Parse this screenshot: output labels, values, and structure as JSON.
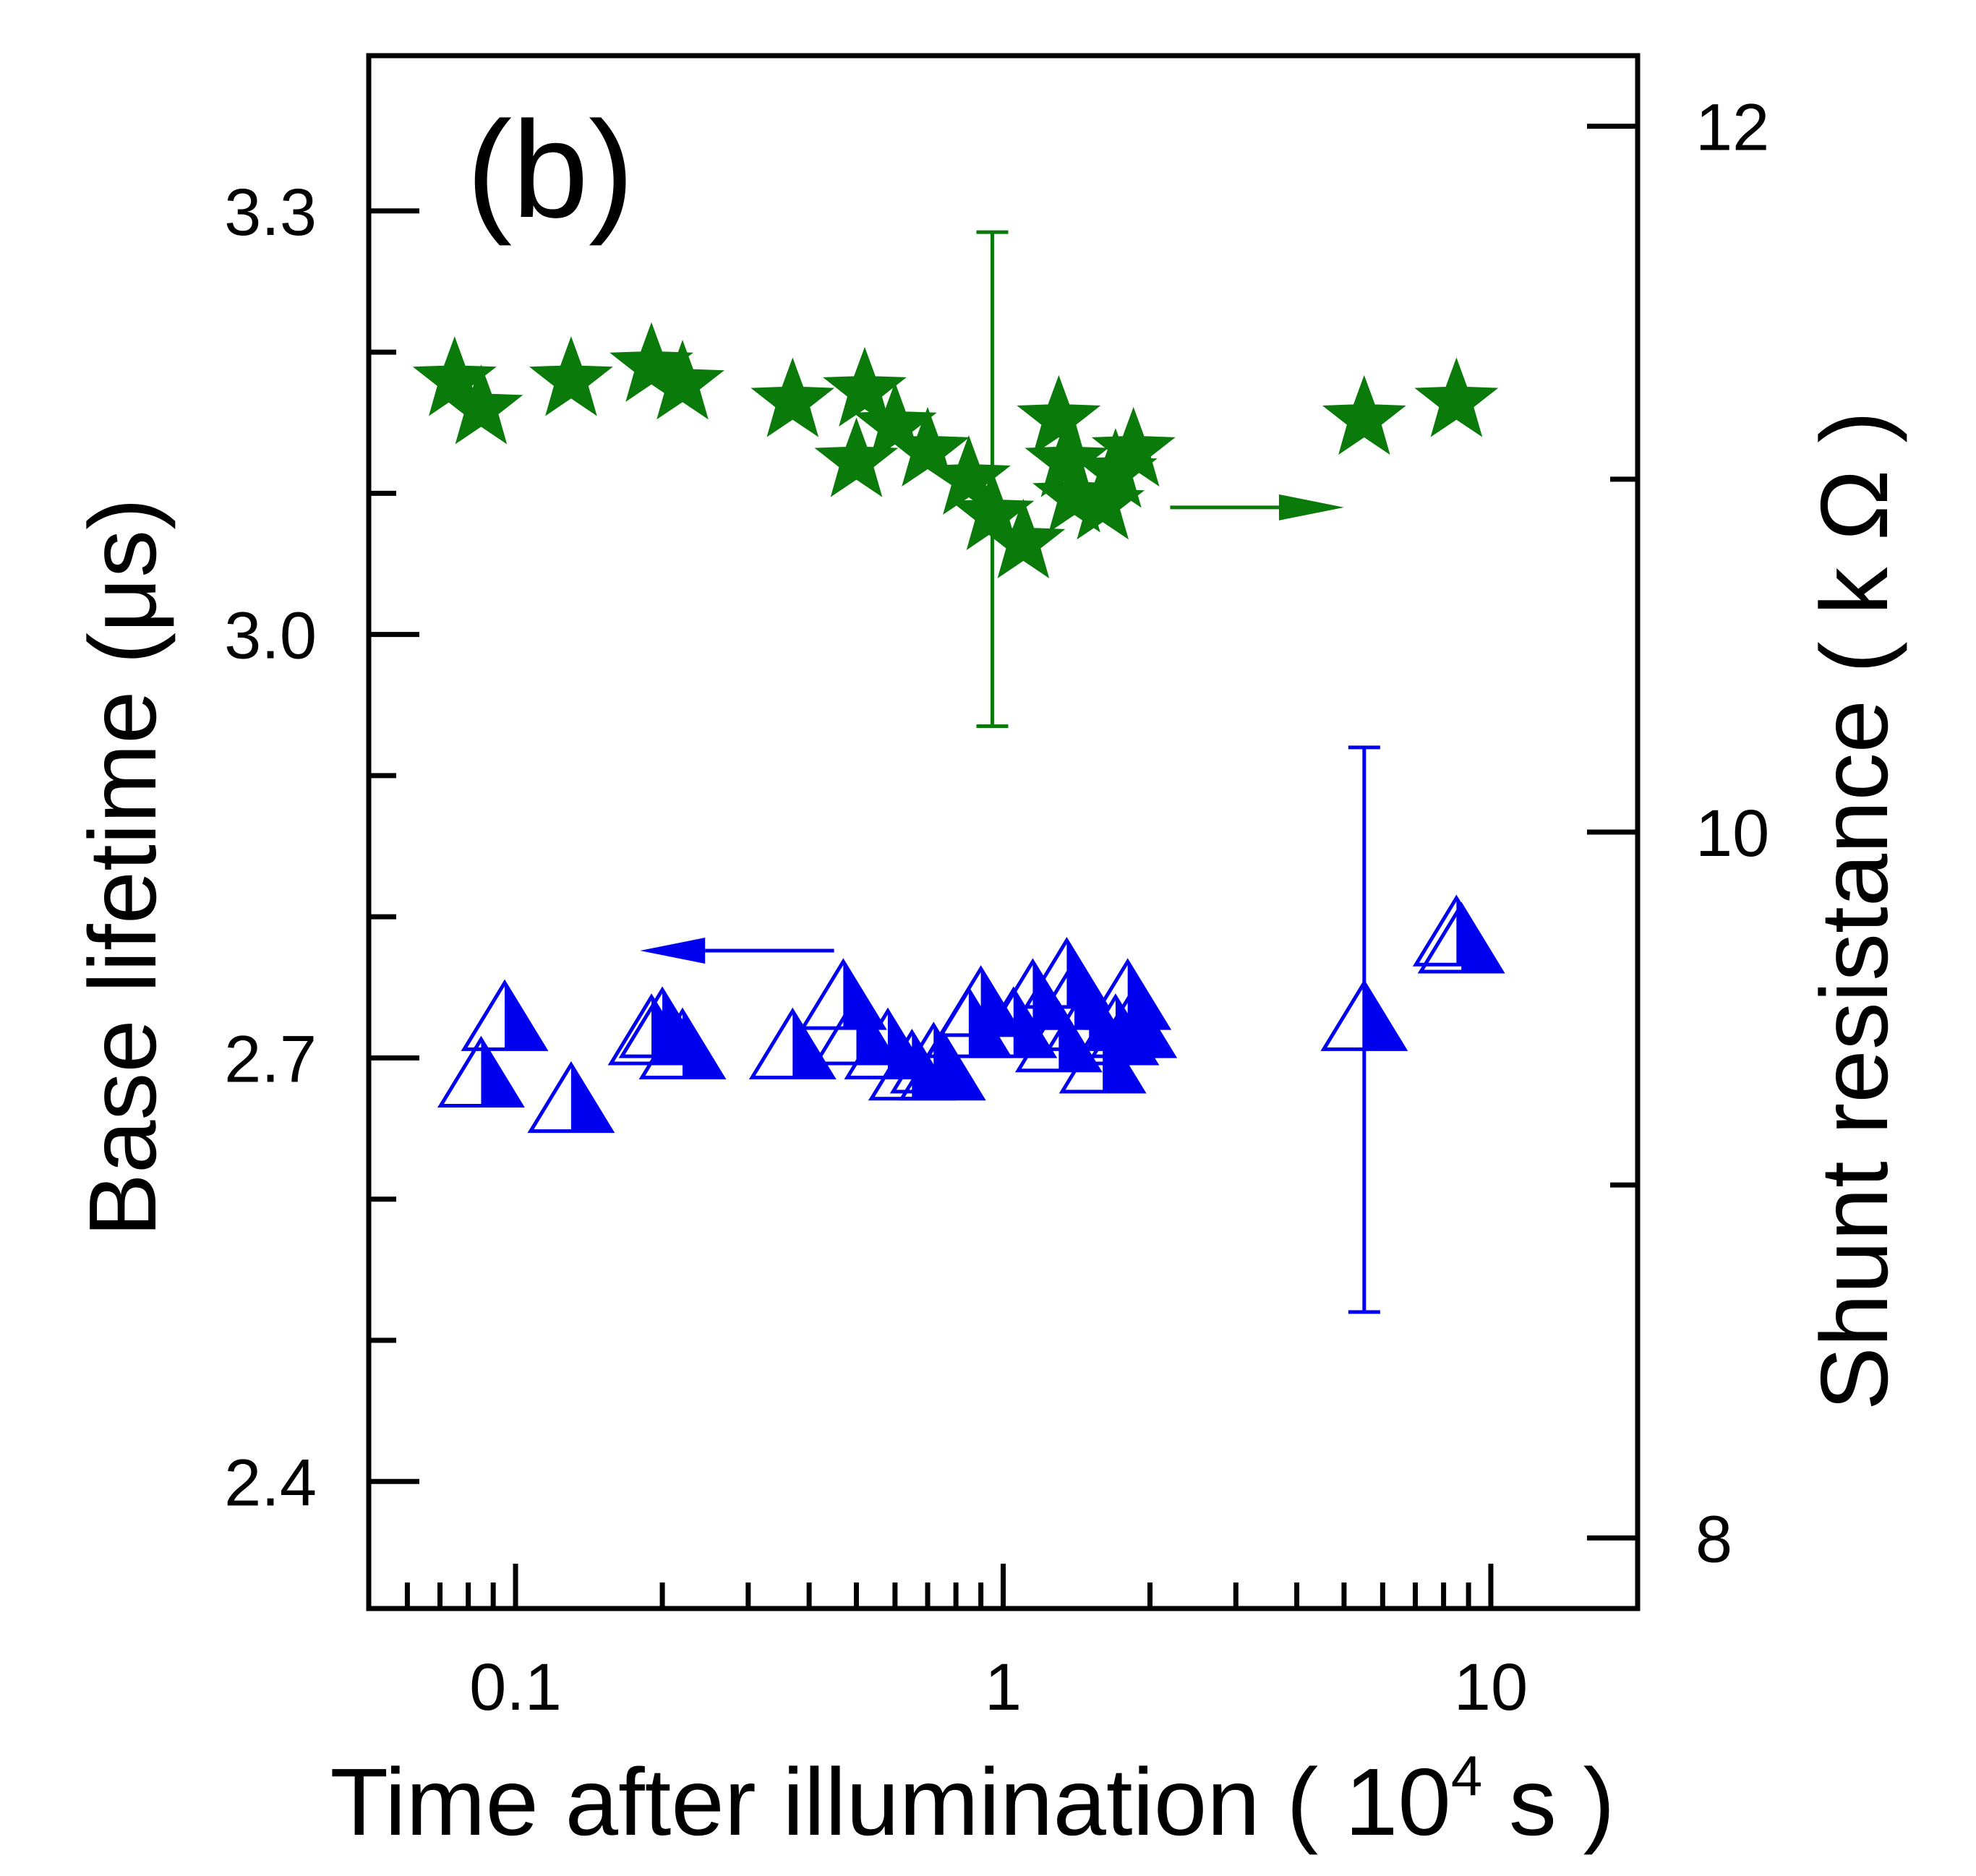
{
  "chart_data": {
    "type": "scatter",
    "panel_label": "(b)",
    "x_axis": {
      "label": "Time after illumination ( 10",
      "label_exp": "4",
      "label_tail": " s )",
      "scale": "log",
      "range": [
        0.05,
        20
      ],
      "ticks": [
        0.1,
        1,
        10
      ],
      "tick_labels": [
        "0.1",
        "1",
        "10"
      ]
    },
    "y_left": {
      "label": "Base lifetime (μs)",
      "range": [
        2.31,
        3.41
      ],
      "ticks": [
        2.4,
        2.7,
        3.0,
        3.3
      ],
      "tick_labels": [
        "2.4",
        "2.7",
        "3.0",
        "3.3"
      ],
      "minor_ticks": [
        2.5,
        2.6,
        2.8,
        2.9,
        3.1,
        3.2
      ]
    },
    "y_right": {
      "label": "Shunt resistance ( k Ω )",
      "range": [
        7.8,
        12.2
      ],
      "ticks": [
        8,
        10,
        12
      ],
      "tick_labels": [
        "8",
        "10",
        "12"
      ],
      "minor_ticks": [
        9,
        11
      ]
    },
    "series": [
      {
        "axis": "right",
        "marker": "star",
        "color": "#0a7a0a",
        "x": [
          0.075,
          0.085,
          0.13,
          0.19,
          0.22,
          0.37,
          0.5,
          0.52,
          0.6,
          0.7,
          0.85,
          0.95,
          1.1,
          1.3,
          1.35,
          1.4,
          1.6,
          1.7,
          1.85,
          5.5,
          8.5
        ],
        "y": [
          11.28,
          11.2,
          11.28,
          11.32,
          11.27,
          11.22,
          11.05,
          11.25,
          11.15,
          11.08,
          11.0,
          10.9,
          10.82,
          11.17,
          11.05,
          10.95,
          10.93,
          11.02,
          11.08,
          11.17,
          11.22
        ],
        "error_bar": {
          "x": 0.95,
          "y": 11.0,
          "upper": 11.7,
          "lower": 10.3
        }
      },
      {
        "axis": "left",
        "marker": "half-filled-triangle",
        "color": "#0000ee",
        "x": [
          0.085,
          0.095,
          0.13,
          0.19,
          0.2,
          0.22,
          0.37,
          0.47,
          0.5,
          0.58,
          0.65,
          0.72,
          0.75,
          0.85,
          0.9,
          1.05,
          1.15,
          1.3,
          1.35,
          1.4,
          1.5,
          1.6,
          1.7,
          1.8,
          1.85,
          5.5,
          8.5,
          8.7
        ],
        "y": [
          2.685,
          2.725,
          2.667,
          2.715,
          2.72,
          2.705,
          2.705,
          2.74,
          2.715,
          2.705,
          2.69,
          2.695,
          2.69,
          2.72,
          2.735,
          2.72,
          2.74,
          2.71,
          2.755,
          2.74,
          2.725,
          2.695,
          2.715,
          2.74,
          2.72,
          2.725,
          2.785,
          2.78
        ],
        "error_bar": {
          "x": 5.5,
          "y": 2.725,
          "upper": 2.92,
          "lower": 2.52
        }
      }
    ],
    "arrows": [
      {
        "color": "#0a7a0a",
        "direction": "right",
        "x_from": 2.2,
        "x_to": 5.0,
        "y": 10.92,
        "axis": "right"
      },
      {
        "color": "#0000ee",
        "direction": "left",
        "x_from": 0.45,
        "x_to": 0.18,
        "y": 2.776,
        "axis": "left"
      }
    ]
  }
}
